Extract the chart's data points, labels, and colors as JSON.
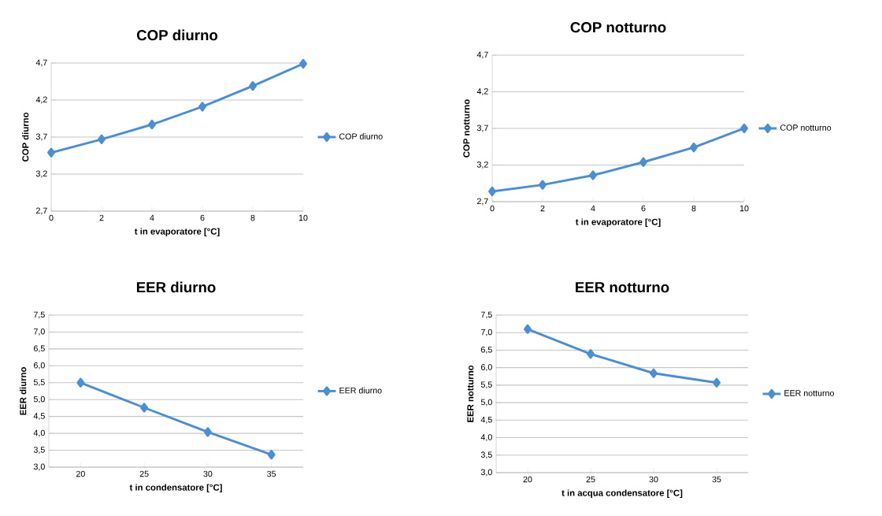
{
  "chart_data": [
    {
      "type": "line",
      "title": "COP diurno",
      "xlabel": "t in evaporatore [°C]",
      "ylabel": "COP diurno",
      "x": [
        0,
        2,
        4,
        6,
        8,
        10
      ],
      "series": [
        {
          "name": "COP diurno",
          "color": "#4a8fd6",
          "values": [
            3.49,
            3.67,
            3.87,
            4.11,
            4.39,
            4.69
          ]
        }
      ],
      "xlim": [
        0,
        10
      ],
      "xticks": [
        0,
        2,
        4,
        6,
        8,
        10
      ],
      "ylim": [
        2.7,
        4.7
      ],
      "yticks": [
        {
          "value": 2.7,
          "label": "2,7"
        },
        {
          "value": 3.2,
          "label": "3,2"
        },
        {
          "value": 3.7,
          "label": "3,7"
        },
        {
          "value": 4.2,
          "label": "4,2"
        },
        {
          "value": 4.7,
          "label": "4,7"
        }
      ],
      "grid": "y",
      "legend": "right",
      "marker": "diamond"
    },
    {
      "type": "line",
      "title": "COP notturno",
      "xlabel": "t in evaporatore [°C]",
      "ylabel": "COP notturno",
      "x": [
        0,
        2,
        4,
        6,
        8,
        10
      ],
      "series": [
        {
          "name": "COP notturno",
          "color": "#4a8fd6",
          "values": [
            2.84,
            2.93,
            3.06,
            3.24,
            3.44,
            3.7
          ]
        }
      ],
      "xlim": [
        0,
        10
      ],
      "xticks": [
        0,
        2,
        4,
        6,
        8,
        10
      ],
      "ylim": [
        2.7,
        4.7
      ],
      "yticks": [
        {
          "value": 2.7,
          "label": "2,7"
        },
        {
          "value": 3.2,
          "label": "3,2"
        },
        {
          "value": 3.7,
          "label": "3,7"
        },
        {
          "value": 4.2,
          "label": "4,2"
        },
        {
          "value": 4.7,
          "label": "4,7"
        }
      ],
      "grid": "y",
      "legend": "right",
      "marker": "diamond"
    },
    {
      "type": "line",
      "title": "EER diurno",
      "xlabel": "t in condensatore [°C]",
      "ylabel": "EER diurno",
      "categories": [
        "20",
        "25",
        "30",
        "35"
      ],
      "series": [
        {
          "name": "EER diurno",
          "color": "#4a8fd6",
          "values": [
            5.5,
            4.76,
            4.04,
            3.37
          ]
        }
      ],
      "ylim": [
        3.0,
        7.5
      ],
      "yticks": [
        {
          "value": 3.0,
          "label": "3,0"
        },
        {
          "value": 3.5,
          "label": "3,5"
        },
        {
          "value": 4.0,
          "label": "4,0"
        },
        {
          "value": 4.5,
          "label": "4,5"
        },
        {
          "value": 5.0,
          "label": "5,0"
        },
        {
          "value": 5.5,
          "label": "5,5"
        },
        {
          "value": 6.0,
          "label": "6,0"
        },
        {
          "value": 6.5,
          "label": "6,5"
        },
        {
          "value": 7.0,
          "label": "7,0"
        },
        {
          "value": 7.5,
          "label": "7,5"
        }
      ],
      "grid": "y",
      "legend": "right",
      "marker": "diamond"
    },
    {
      "type": "line",
      "title": "EER notturno",
      "xlabel": "t in acqua condensatore [°C]",
      "ylabel": "EER notturno",
      "categories": [
        "20",
        "25",
        "30",
        "35"
      ],
      "series": [
        {
          "name": "EER notturno",
          "color": "#4a8fd6",
          "values": [
            7.1,
            6.39,
            5.84,
            5.57
          ]
        }
      ],
      "ylim": [
        3.0,
        7.5
      ],
      "yticks": [
        {
          "value": 3.0,
          "label": "3,0"
        },
        {
          "value": 3.5,
          "label": "3,5"
        },
        {
          "value": 4.0,
          "label": "4,0"
        },
        {
          "value": 4.5,
          "label": "4,5"
        },
        {
          "value": 5.0,
          "label": "5,0"
        },
        {
          "value": 5.5,
          "label": "5,5"
        },
        {
          "value": 6.0,
          "label": "6,0"
        },
        {
          "value": 6.5,
          "label": "6,5"
        },
        {
          "value": 7.0,
          "label": "7,0"
        },
        {
          "value": 7.5,
          "label": "7,5"
        }
      ],
      "grid": "y",
      "legend": "right",
      "marker": "diamond"
    }
  ]
}
